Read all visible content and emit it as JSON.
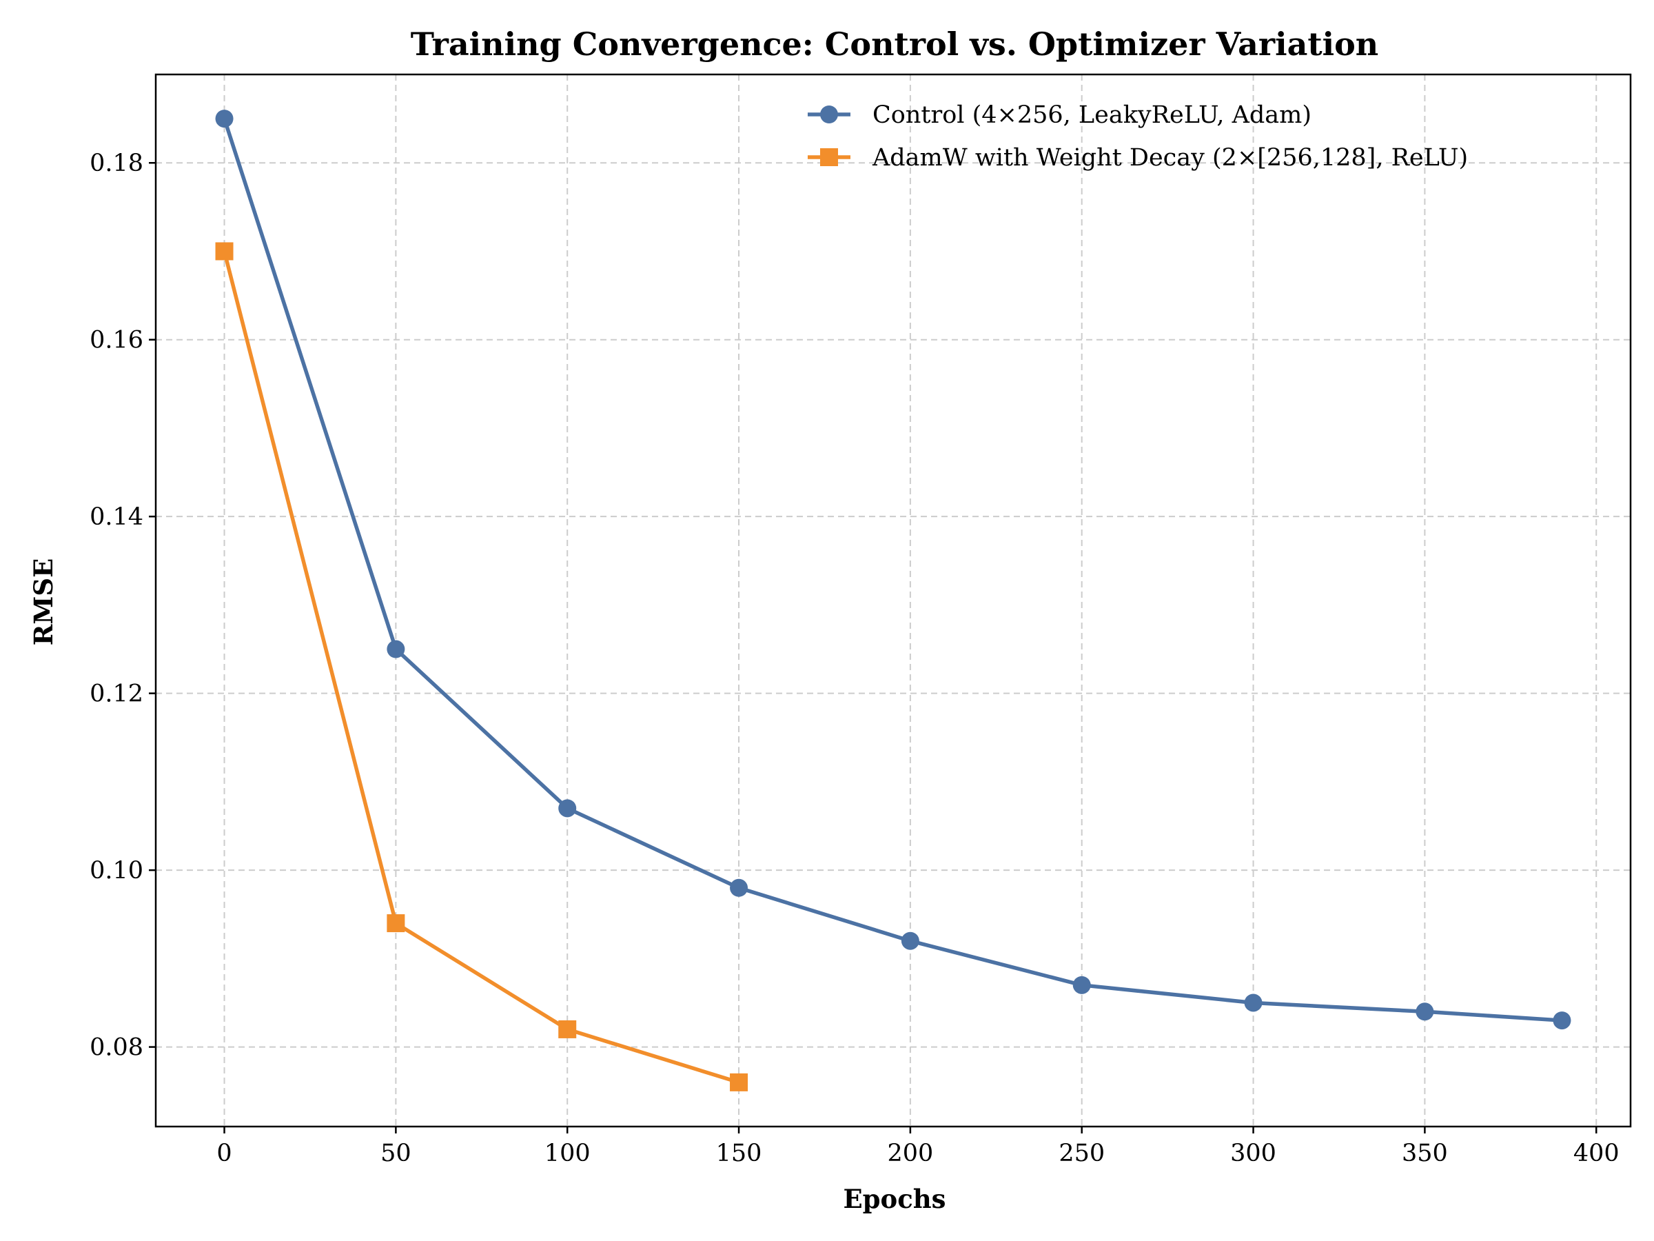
{
  "chart_data": {
    "type": "line",
    "title": "Training Convergence: Control vs. Optimizer Variation",
    "xlabel": "Epochs",
    "ylabel": "RMSE",
    "xlim": [
      -20,
      410
    ],
    "ylim": [
      0.071,
      0.19
    ],
    "x_ticks": [
      0,
      50,
      100,
      150,
      200,
      250,
      300,
      350,
      400
    ],
    "y_ticks": [
      0.08,
      0.1,
      0.12,
      0.14,
      0.16,
      0.18
    ],
    "y_tick_labels": [
      "0.08",
      "0.10",
      "0.12",
      "0.14",
      "0.16",
      "0.18"
    ],
    "grid": true,
    "legend_position": "top-right",
    "series": [
      {
        "name": "Control (4×256, LeakyReLU, Adam)",
        "color": "#4c72a4",
        "marker": "circle",
        "x": [
          0,
          50,
          100,
          150,
          200,
          250,
          300,
          350,
          390
        ],
        "y": [
          0.185,
          0.125,
          0.107,
          0.098,
          0.092,
          0.087,
          0.085,
          0.084,
          0.083
        ]
      },
      {
        "name": "AdamW with Weight Decay (2×[256,128], ReLU)",
        "color": "#f28e2b",
        "marker": "square",
        "x": [
          0,
          50,
          100,
          150
        ],
        "y": [
          0.17,
          0.094,
          0.082,
          0.076
        ]
      }
    ]
  }
}
